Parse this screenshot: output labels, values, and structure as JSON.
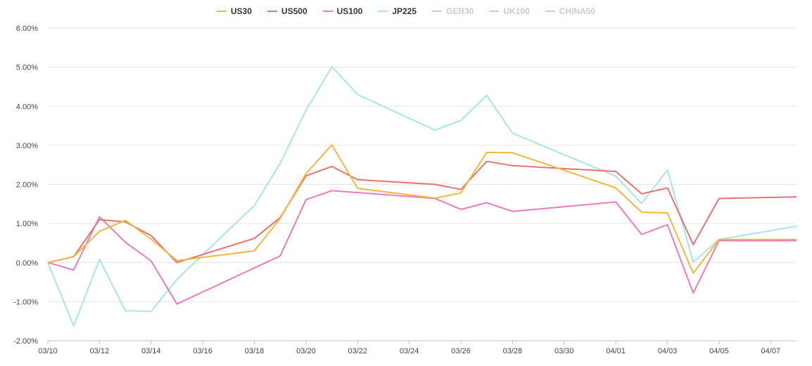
{
  "chart_data": {
    "type": "line",
    "title": "",
    "xlabel": "",
    "ylabel": "",
    "ylim": [
      -0.02,
      0.06
    ],
    "y_ticks": [
      -0.02,
      -0.01,
      0.0,
      0.01,
      0.02,
      0.03,
      0.04,
      0.05,
      0.06
    ],
    "y_tick_labels": [
      "-2.00%",
      "-1.00%",
      "0.00%",
      "1.00%",
      "2.00%",
      "3.00%",
      "4.00%",
      "5.00%",
      "6.00%"
    ],
    "x_range": [
      "03/10",
      "04/08"
    ],
    "x_tick_labels": [
      "03/10",
      "03/12",
      "03/14",
      "03/16",
      "03/18",
      "03/20",
      "03/22",
      "03/24",
      "03/26",
      "03/28",
      "03/30",
      "04/01",
      "04/03",
      "04/05",
      "04/07"
    ],
    "grid": true,
    "legend_position": "top-center",
    "series": [
      {
        "name": "US30",
        "color": "#f4b73c",
        "visible": true,
        "points": [
          [
            "03/10",
            0.0
          ],
          [
            "03/11",
            0.0015
          ],
          [
            "03/12",
            0.008
          ],
          [
            "03/13",
            0.0108
          ],
          [
            "03/14",
            0.006
          ],
          [
            "03/15",
            0.0005
          ],
          [
            "03/18",
            0.003
          ],
          [
            "03/19",
            0.0113
          ],
          [
            "03/20",
            0.0228
          ],
          [
            "03/21",
            0.0301
          ],
          [
            "03/22",
            0.019
          ],
          [
            "03/25",
            0.0165
          ],
          [
            "03/26",
            0.0178
          ],
          [
            "03/27",
            0.0282
          ],
          [
            "03/28",
            0.0281
          ],
          [
            "04/01",
            0.0191
          ],
          [
            "04/02",
            0.0129
          ],
          [
            "04/03",
            0.0127
          ],
          [
            "04/04",
            -0.0027
          ],
          [
            "04/05",
            0.0059
          ],
          [
            "04/08",
            0.0059
          ]
        ]
      },
      {
        "name": "US500",
        "color": "#e8736e",
        "visible": true,
        "points": [
          [
            "03/10",
            0.0
          ],
          [
            "03/11",
            0.0015
          ],
          [
            "03/12",
            0.011
          ],
          [
            "03/13",
            0.0104
          ],
          [
            "03/14",
            0.0069
          ],
          [
            "03/15",
            0.0
          ],
          [
            "03/18",
            0.0062
          ],
          [
            "03/19",
            0.0115
          ],
          [
            "03/20",
            0.0222
          ],
          [
            "03/21",
            0.0246
          ],
          [
            "03/22",
            0.0212
          ],
          [
            "03/25",
            0.02
          ],
          [
            "03/26",
            0.0187
          ],
          [
            "03/27",
            0.0259
          ],
          [
            "03/28",
            0.0248
          ],
          [
            "04/01",
            0.0233
          ],
          [
            "04/02",
            0.0176
          ],
          [
            "04/03",
            0.0191
          ],
          [
            "04/04",
            0.0046
          ],
          [
            "04/05",
            0.0164
          ],
          [
            "04/08",
            0.0168
          ]
        ]
      },
      {
        "name": "US100",
        "color": "#ec7bb8",
        "visible": true,
        "points": [
          [
            "03/10",
            0.0
          ],
          [
            "03/11",
            -0.0019
          ],
          [
            "03/12",
            0.0117
          ],
          [
            "03/13",
            0.0052
          ],
          [
            "03/14",
            0.0004
          ],
          [
            "03/15",
            -0.0106
          ],
          [
            "03/19",
            0.0017
          ],
          [
            "03/20",
            0.0161
          ],
          [
            "03/21",
            0.0184
          ],
          [
            "03/25",
            0.0164
          ],
          [
            "03/26",
            0.0136
          ],
          [
            "03/27",
            0.0153
          ],
          [
            "03/28",
            0.0131
          ],
          [
            "04/01",
            0.0155
          ],
          [
            "04/02",
            0.0072
          ],
          [
            "04/03",
            0.0097
          ],
          [
            "04/04",
            -0.0078
          ],
          [
            "04/05",
            0.0056
          ],
          [
            "04/08",
            0.0056
          ]
        ]
      },
      {
        "name": "JP225",
        "color": "#a8e6df",
        "visible": true,
        "points": [
          [
            "03/10",
            0.0
          ],
          [
            "03/11",
            -0.0162
          ],
          [
            "03/12",
            0.0008
          ],
          [
            "03/13",
            -0.0123
          ],
          [
            "03/14",
            -0.0125
          ],
          [
            "03/15",
            -0.0043
          ],
          [
            "03/18",
            0.0146
          ],
          [
            "03/19",
            0.0254
          ],
          [
            "03/20",
            0.039
          ],
          [
            "03/21",
            0.0501
          ],
          [
            "03/22",
            0.043
          ],
          [
            "03/25",
            0.0339
          ],
          [
            "03/26",
            0.0364
          ],
          [
            "03/27",
            0.0428
          ],
          [
            "03/28",
            0.0331
          ],
          [
            "04/01",
            0.0221
          ],
          [
            "04/02",
            0.0151
          ],
          [
            "04/03",
            0.0237
          ],
          [
            "04/04",
            0.0001
          ],
          [
            "04/05",
            0.0059
          ],
          [
            "04/08",
            0.0093
          ]
        ]
      },
      {
        "name": "GER30",
        "color": "#cccccc",
        "visible": false,
        "points": []
      },
      {
        "name": "UK100",
        "color": "#cccccc",
        "visible": false,
        "points": []
      },
      {
        "name": "CHINA50",
        "color": "#cccccc",
        "visible": false,
        "points": []
      }
    ]
  }
}
